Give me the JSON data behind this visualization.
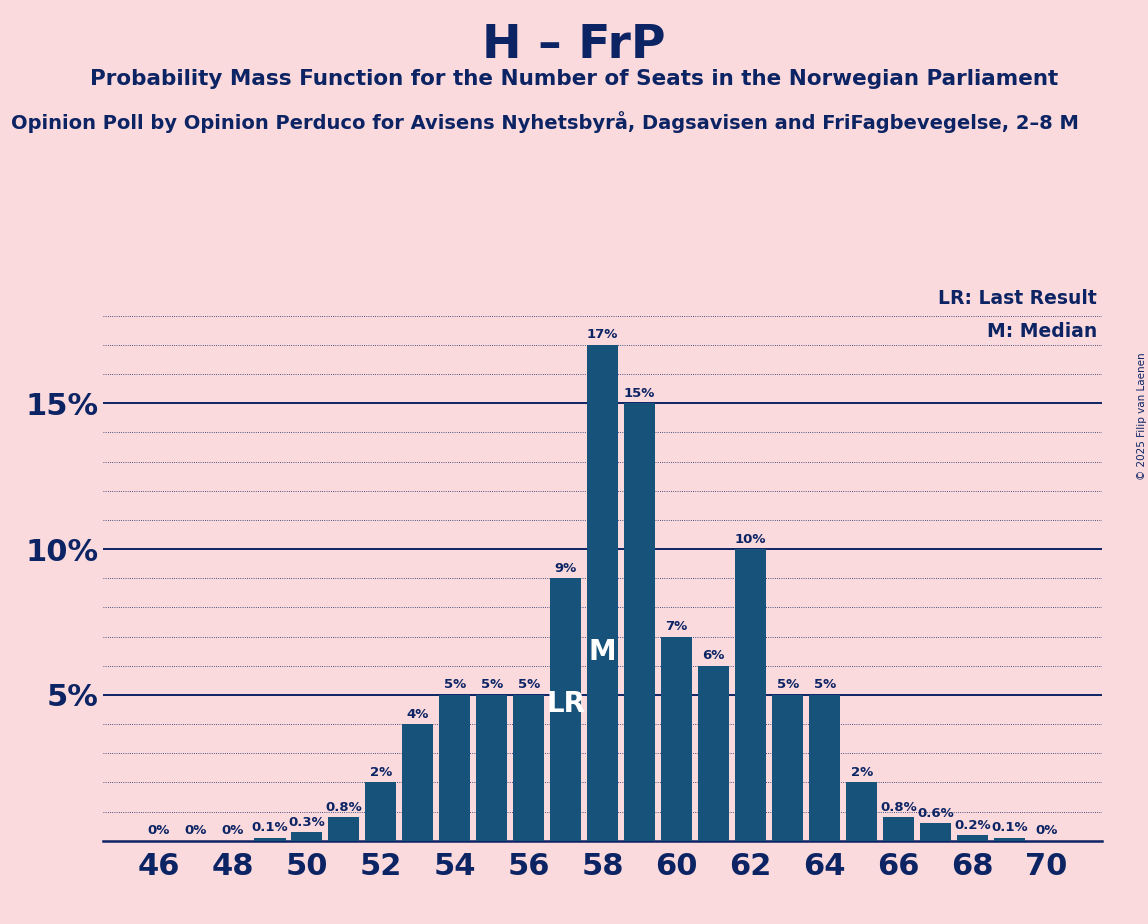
{
  "title": "H – FrP",
  "subtitle": "Probability Mass Function for the Number of Seats in the Norwegian Parliament",
  "sub2": "Opinion Poll by Opinion Perduco for Avisens Nyhetsbyrå, Dagsavisen and FriFagbevegelse, 2–8 M",
  "copyright": "© 2025 Filip van Laenen",
  "seats": [
    46,
    47,
    48,
    49,
    50,
    51,
    52,
    53,
    54,
    55,
    56,
    57,
    58,
    59,
    60,
    61,
    62,
    63,
    64,
    65,
    66,
    67,
    68,
    69,
    70
  ],
  "values": [
    0.0,
    0.0,
    0.0,
    0.1,
    0.3,
    0.8,
    2.0,
    4.0,
    5.0,
    5.0,
    5.0,
    9.0,
    17.0,
    15.0,
    7.0,
    6.0,
    10.0,
    5.0,
    5.0,
    2.0,
    0.8,
    0.6,
    0.2,
    0.1,
    0.0
  ],
  "bar_color": "#17527a",
  "bg_color": "#fadadd",
  "text_color": "#0d2464",
  "lr_seat": 57,
  "median_seat": 58,
  "legend_lr": "LR: Last Result",
  "legend_m": "M: Median",
  "bar_labels": [
    "0%",
    "0%",
    "0%",
    "0.1%",
    "0.3%",
    "0.8%",
    "2%",
    "4%",
    "5%",
    "5%",
    "5%",
    "9%",
    "17%",
    "15%",
    "7%",
    "6%",
    "10%",
    "5%",
    "5%",
    "2%",
    "0.8%",
    "0.6%",
    "0.2%",
    "0.1%",
    "0%"
  ],
  "xtick_seats": [
    46,
    48,
    50,
    52,
    54,
    56,
    58,
    60,
    62,
    64,
    66,
    68,
    70
  ],
  "ytick_vals": [
    5,
    10,
    15
  ],
  "ytick_labels": [
    "5%",
    "10%",
    "15%"
  ],
  "solid_hlines": [
    5,
    10,
    15
  ],
  "dotted_hlines": [
    1,
    2,
    3,
    4,
    6,
    7,
    8,
    9,
    11,
    12,
    13,
    14,
    16,
    17,
    18
  ],
  "ylim": [
    0,
    19.0
  ],
  "xlim": [
    44.5,
    71.5
  ]
}
